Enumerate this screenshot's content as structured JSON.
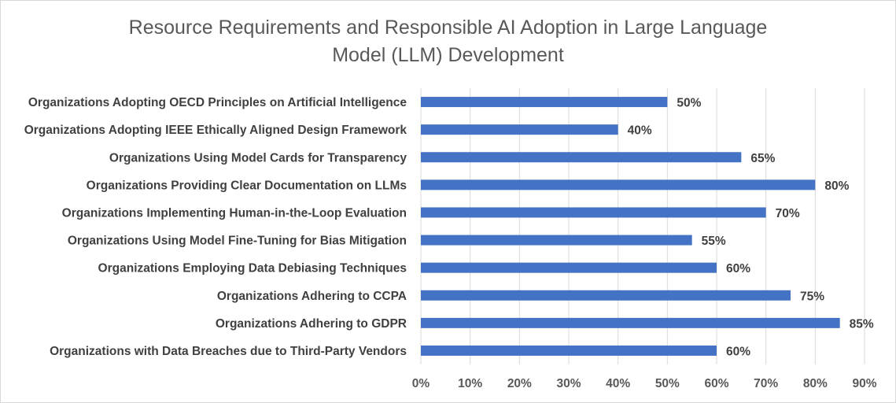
{
  "chart_data": {
    "type": "bar",
    "orientation": "horizontal",
    "title_lines": [
      "Resource Requirements and Responsible AI Adoption in Large Language",
      "Model (LLM) Development"
    ],
    "categories": [
      "Organizations Adopting OECD Principles on Artificial Intelligence",
      "Organizations Adopting IEEE Ethically Aligned Design Framework",
      "Organizations Using Model Cards for Transparency",
      "Organizations Providing Clear Documentation on LLMs",
      "Organizations Implementing Human-in-the-Loop Evaluation",
      "Organizations Using Model Fine-Tuning for Bias Mitigation",
      "Organizations Employing Data Debiasing Techniques",
      "Organizations Adhering to CCPA",
      "Organizations Adhering to GDPR",
      "Organizations with Data Breaches due to Third-Party Vendors"
    ],
    "values": [
      50,
      40,
      65,
      80,
      70,
      55,
      60,
      75,
      85,
      60
    ],
    "data_labels": [
      "50%",
      "40%",
      "65%",
      "80%",
      "70%",
      "55%",
      "60%",
      "75%",
      "85%",
      "60%"
    ],
    "xlim": [
      0,
      90
    ],
    "x_ticks": [
      0,
      10,
      20,
      30,
      40,
      50,
      60,
      70,
      80,
      90
    ],
    "x_tick_labels": [
      "0%",
      "10%",
      "20%",
      "30%",
      "40%",
      "50%",
      "60%",
      "70%",
      "80%",
      "90%"
    ],
    "xlabel": "",
    "ylabel": "",
    "grid": true,
    "legend": "none",
    "bar_color": "#4472c4",
    "grid_color": "#d9d9d9"
  }
}
